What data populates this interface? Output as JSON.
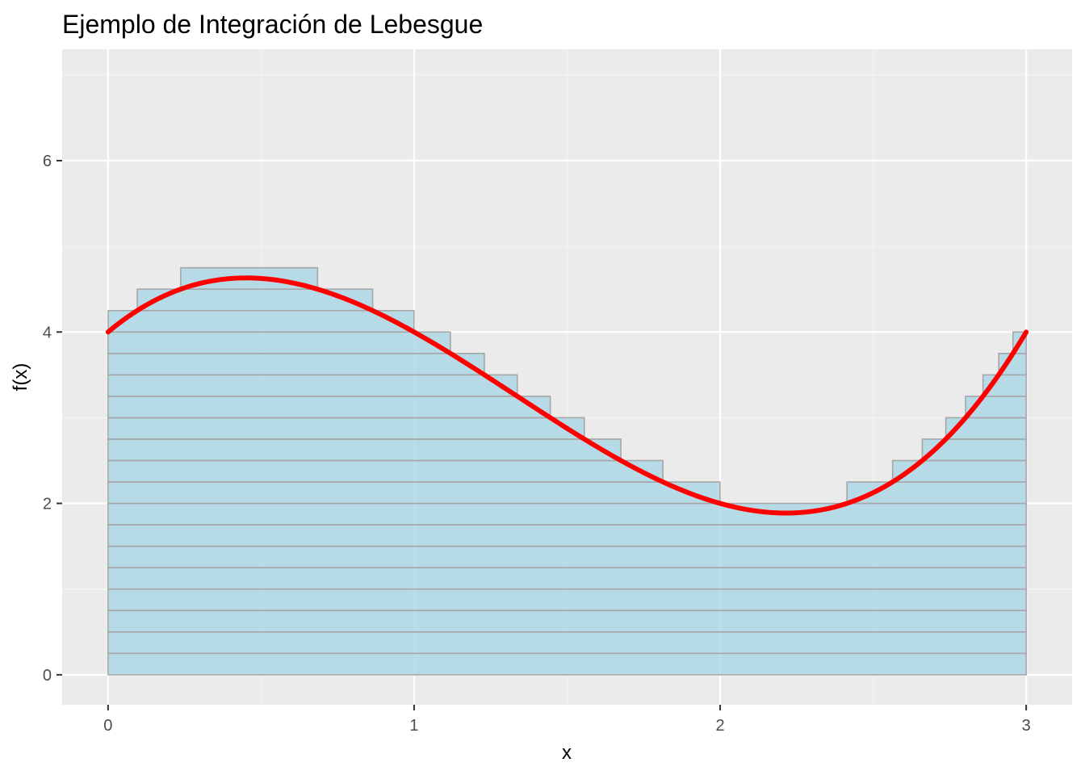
{
  "chart_data": {
    "type": "area",
    "title": "Ejemplo de Integración de Lebesgue",
    "xlabel": "x",
    "ylabel": "f(x)",
    "xlim": [
      -0.15,
      3.15
    ],
    "ylim": [
      -0.35,
      7.3
    ],
    "x_ticks": [
      0,
      1,
      2,
      3
    ],
    "x_tick_labels": [
      "0",
      "1",
      "2",
      "3"
    ],
    "y_ticks": [
      0,
      2,
      4,
      6
    ],
    "y_tick_labels": [
      "0",
      "2",
      "4",
      "6"
    ],
    "grid": true,
    "legend": "none",
    "curve": {
      "function": "f(x) = x^3 - 4x^2 + 3x + 4",
      "x_range": [
        0,
        3
      ],
      "color": "#ff0000"
    },
    "lebesgue_bands": {
      "level_step": 0.25,
      "levels_from": 0,
      "levels_to": 6.75,
      "fill_color": "#add8e6",
      "border_color": "#a6a6a6"
    },
    "colors": {
      "panel_background": "#ebebeb",
      "grid_major": "#ffffff",
      "grid_minor": "#f5f5f5"
    }
  }
}
